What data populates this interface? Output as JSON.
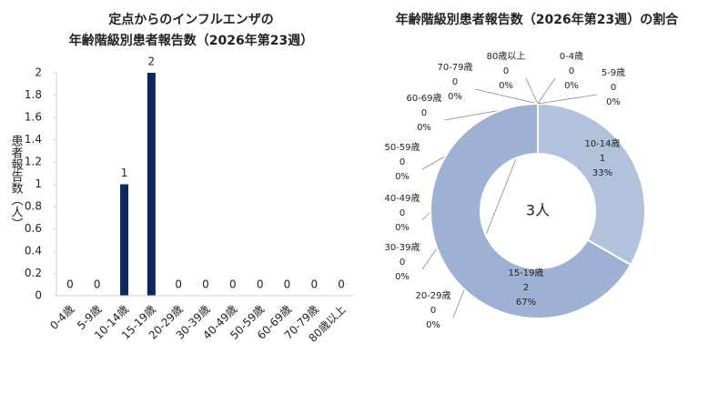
{
  "chart_data": [
    {
      "type": "bar",
      "title": [
        "定点からのインフルエンザの",
        "年齢階級別患者報告数（2026年第23週）"
      ],
      "y_label": "患者報告数（人）",
      "categories": [
        "0-4歳",
        "5-9歳",
        "10-14歳",
        "15-19歳",
        "20-29歳",
        "30-39歳",
        "40-49歳",
        "50-59歳",
        "60-69歳",
        "70-79歳",
        "80歳以上"
      ],
      "values": [
        0,
        0,
        1,
        2,
        0,
        0,
        0,
        0,
        0,
        0,
        0
      ],
      "color": "#10275e",
      "ylim": [
        0,
        2
      ],
      "yticks": [
        0,
        0.2,
        0.4,
        0.6,
        0.8,
        1,
        1.2,
        1.4,
        1.6,
        1.8,
        2
      ],
      "grid": false
    },
    {
      "type": "doughnut",
      "title": "年齢階級別患者報告数（2026年第23週）の割合",
      "center_label": "3人",
      "categories": [
        "0-4歳",
        "5-9歳",
        "10-14歳",
        "15-19歳",
        "20-29歳",
        "30-39歳",
        "40-49歳",
        "50-59歳",
        "60-69歳",
        "70-79歳",
        "80歳以上"
      ],
      "values": [
        0,
        0,
        1,
        2,
        0,
        0,
        0,
        0,
        0,
        0,
        0
      ],
      "percent_labels": [
        "0%",
        "0%",
        "33%",
        "67%",
        "0%",
        "0%",
        "0%",
        "0%",
        "0%",
        "0%",
        "0%"
      ],
      "colors": [
        "#c5d0e4",
        "#bcc9e0",
        "#b3c2dc",
        "#9eb0d4",
        "#a9bad8",
        "#b0bfdb",
        "#b7c5de",
        "#bfcae1",
        "#c6d0e4",
        "#cdd6e8",
        "#d4dcec"
      ]
    }
  ]
}
